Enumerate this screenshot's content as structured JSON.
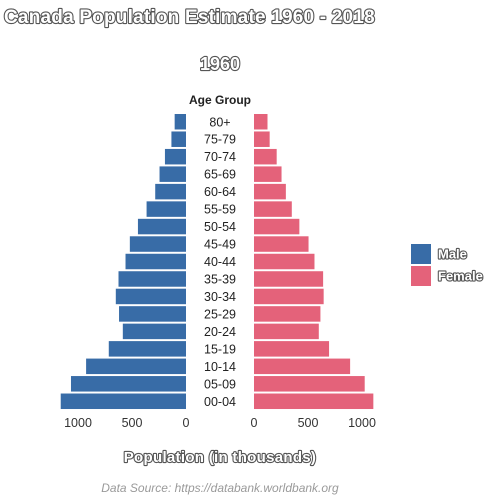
{
  "title": "Canada Population Estimate 1960 - 2018",
  "subtitle": "1960",
  "source": "Data Source: https://databank.worldbank.org",
  "colors": {
    "male": "#386ca7",
    "female": "#e4627a"
  },
  "chart_data": {
    "type": "bar",
    "orientation": "horizontal-population-pyramid",
    "center_title": "Age Group",
    "categories": [
      "80+",
      "75-79",
      "70-74",
      "65-69",
      "60-64",
      "55-59",
      "50-54",
      "45-49",
      "40-44",
      "35-39",
      "30-34",
      "25-29",
      "20-24",
      "15-19",
      "10-14",
      "05-09",
      "00-04"
    ],
    "series": [
      {
        "name": "Male",
        "color": "#386ca7",
        "values": [
          105,
          135,
          195,
          245,
          285,
          365,
          445,
          520,
          560,
          625,
          650,
          620,
          585,
          715,
          925,
          1065,
          1160
        ]
      },
      {
        "name": "Female",
        "color": "#e4627a",
        "values": [
          125,
          145,
          210,
          255,
          295,
          350,
          420,
          505,
          560,
          640,
          645,
          615,
          600,
          695,
          890,
          1025,
          1105
        ]
      }
    ],
    "male_ticks": [
      1000,
      500,
      0
    ],
    "female_ticks": [
      0,
      500,
      1000
    ],
    "tick_labels_male": [
      "1000",
      "500",
      "0"
    ],
    "tick_labels_female": [
      "0",
      "500",
      "1000"
    ],
    "xlabel": "Population (in thousands)",
    "xlim": [
      0,
      1200
    ],
    "legend": {
      "position": "right",
      "entries": [
        "Male",
        "Female"
      ]
    },
    "grid": false
  }
}
